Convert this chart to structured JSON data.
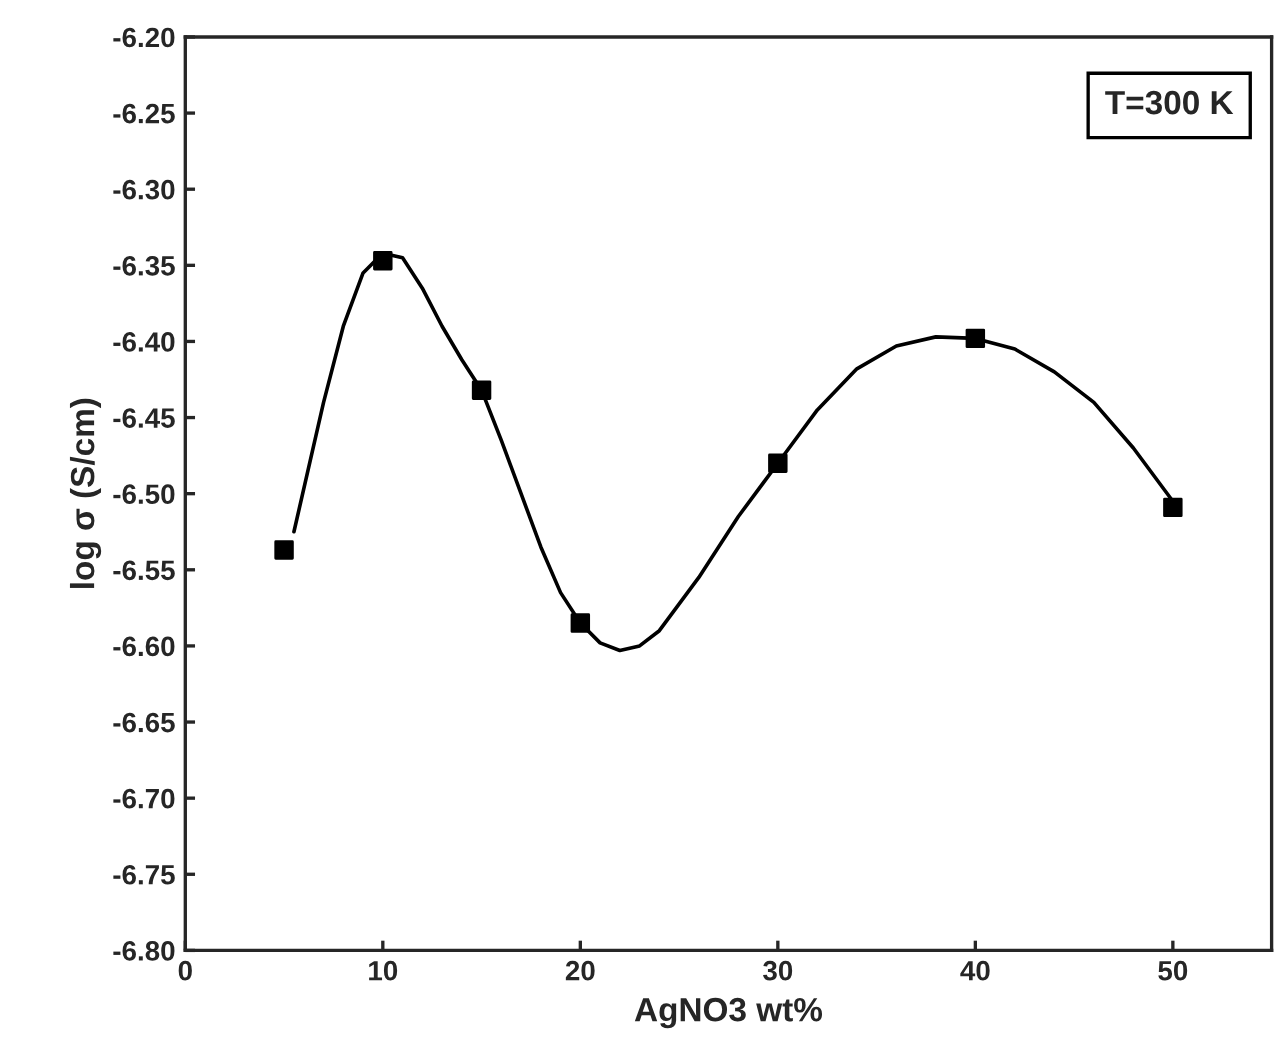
{
  "chart_data": {
    "type": "scatter",
    "xlabel": "AgNO3 wt%",
    "ylabel": "log σ (S/cm)",
    "annotations": [
      "T=300 K"
    ],
    "series": [
      {
        "color": "#000000",
        "marker": "square",
        "x": [
          5,
          10,
          15,
          20,
          30,
          40,
          50
        ],
        "values": [
          -6.537,
          -6.347,
          -6.432,
          -6.585,
          -6.48,
          -6.398,
          -6.509
        ]
      },
      {
        "type": "line",
        "color": "#000000",
        "marker": "none",
        "x": [
          5.5,
          7,
          8,
          9,
          10,
          11,
          12,
          13,
          14,
          15,
          16,
          17,
          18,
          19,
          20,
          21,
          22,
          23,
          24,
          26,
          28,
          30,
          32,
          34,
          36,
          38,
          40,
          42,
          44,
          46,
          48,
          50
        ],
        "values": [
          -6.525,
          -6.44,
          -6.39,
          -6.355,
          -6.342,
          -6.345,
          -6.365,
          -6.39,
          -6.412,
          -6.432,
          -6.465,
          -6.5,
          -6.535,
          -6.565,
          -6.585,
          -6.598,
          -6.603,
          -6.6,
          -6.59,
          -6.555,
          -6.515,
          -6.48,
          -6.445,
          -6.418,
          -6.403,
          -6.397,
          -6.398,
          -6.405,
          -6.42,
          -6.44,
          -6.47,
          -6.505
        ]
      }
    ],
    "xlim": [
      0,
      55
    ],
    "xticks": [
      0,
      10,
      20,
      30,
      40,
      50
    ],
    "ylim": [
      -6.8,
      -6.2
    ],
    "yticks": [
      {
        "value": -6.8,
        "label": "-6.80"
      },
      {
        "value": -6.75,
        "label": "-6.75"
      },
      {
        "value": -6.7,
        "label": "-6.70"
      },
      {
        "value": -6.65,
        "label": "-6.65"
      },
      {
        "value": -6.6,
        "label": "-6.60"
      },
      {
        "value": -6.55,
        "label": "-6.55"
      },
      {
        "value": -6.5,
        "label": "-6.50"
      },
      {
        "value": -6.45,
        "label": "-6.45"
      },
      {
        "value": -6.4,
        "label": "-6.40"
      },
      {
        "value": -6.35,
        "label": "-6.35"
      },
      {
        "value": -6.3,
        "label": "-6.30"
      },
      {
        "value": -6.25,
        "label": "-6.25"
      },
      {
        "value": -6.2,
        "label": "-6.20"
      }
    ],
    "grid": false,
    "legend": false
  }
}
